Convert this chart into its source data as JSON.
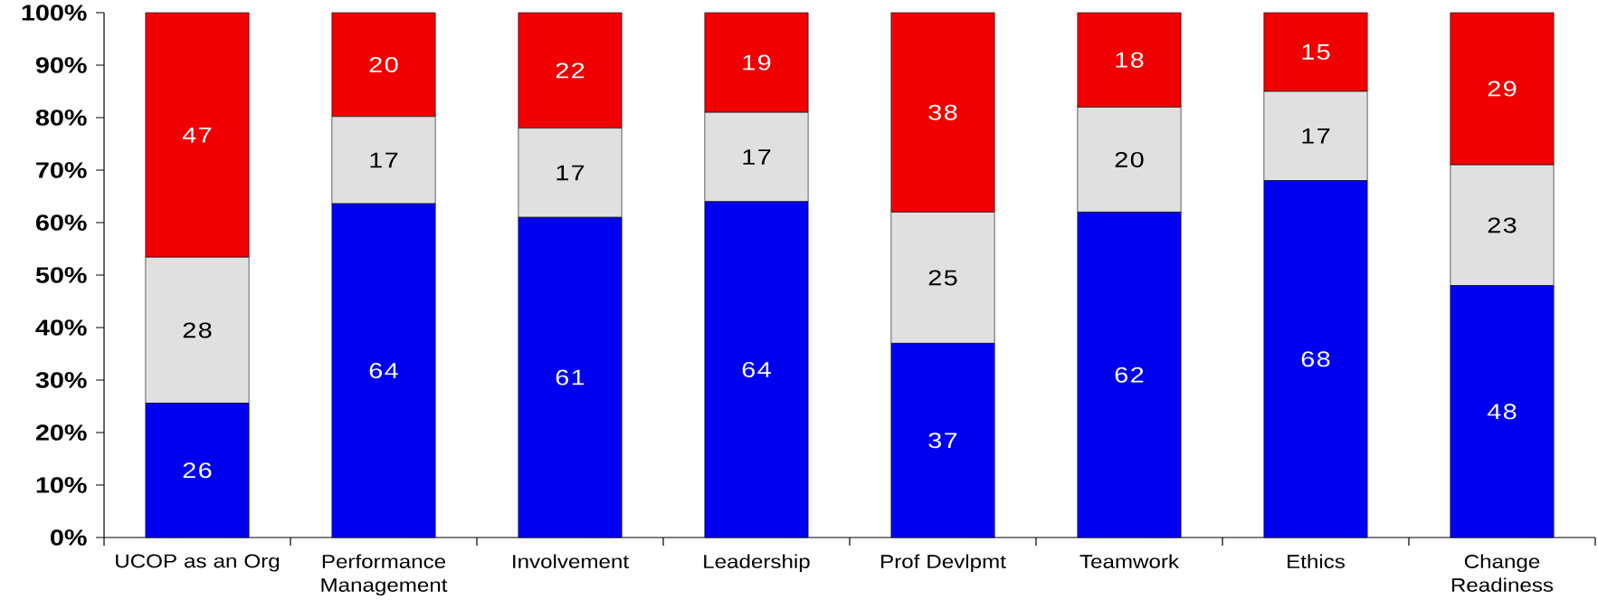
{
  "chart_data": {
    "type": "bar",
    "stacked": true,
    "categories": [
      "UCOP as an Org",
      "Performance Management",
      "Involvement",
      "Leadership",
      "Prof Devlpmt",
      "Teamwork",
      "Ethics",
      "Change Readiness"
    ],
    "ylim": [
      0,
      100
    ],
    "yticks": [
      {
        "value": 0,
        "label": "0%"
      },
      {
        "value": 10,
        "label": "10%"
      },
      {
        "value": 20,
        "label": "20%"
      },
      {
        "value": 30,
        "label": "30%"
      },
      {
        "value": 40,
        "label": "40%"
      },
      {
        "value": 50,
        "label": "50%"
      },
      {
        "value": 60,
        "label": "60%"
      },
      {
        "value": 70,
        "label": "70%"
      },
      {
        "value": 80,
        "label": "80%"
      },
      {
        "value": 90,
        "label": "90%"
      },
      {
        "value": 100,
        "label": "100%"
      }
    ],
    "series": [
      {
        "color": "#0000f0",
        "values": [
          25.6,
          63.6,
          61,
          64,
          37,
          62,
          68,
          48
        ],
        "value_labels": [
          "26",
          "64",
          "61",
          "64",
          "37",
          "62",
          "68",
          "48"
        ]
      },
      {
        "color": "#e0e0e0",
        "values": [
          27.8,
          16.6,
          17,
          17,
          25,
          20,
          17,
          23
        ],
        "value_labels": [
          "28",
          "17",
          "17",
          "17",
          "25",
          "20",
          "17",
          "23"
        ]
      },
      {
        "color": "#f00000",
        "values": [
          46.6,
          19.8,
          22,
          19,
          38,
          18,
          15,
          29
        ],
        "value_labels": [
          "47",
          "20",
          "22",
          "19",
          "38",
          "18",
          "15",
          "29"
        ]
      }
    ]
  }
}
